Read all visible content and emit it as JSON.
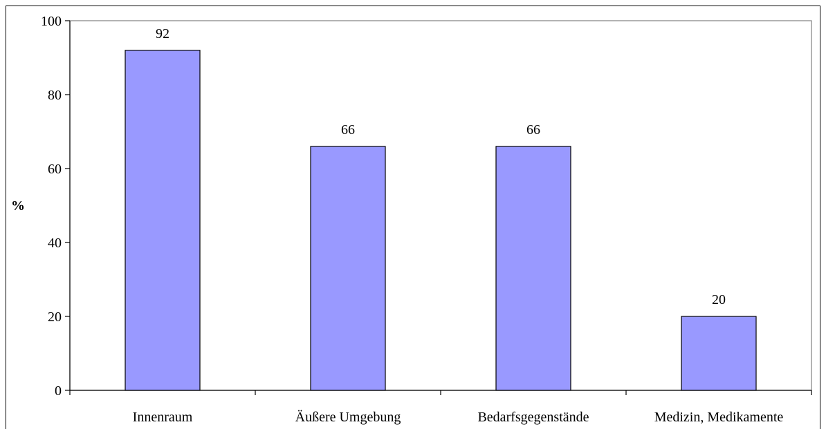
{
  "chart_data": {
    "type": "bar",
    "categories": [
      "Innenraum",
      "Äußere Umgebung",
      "Bedarfsgegenstände",
      "Medizin, Medikamente"
    ],
    "values": [
      92,
      66,
      66,
      20
    ],
    "data_labels": [
      "92",
      "66",
      "66",
      "20"
    ],
    "ylabel": "%",
    "xlabel": "",
    "title": "",
    "ylim": [
      0,
      100
    ],
    "yticks": [
      0,
      20,
      40,
      60,
      80,
      100
    ],
    "grid": false,
    "bar_color": "#9999ff",
    "plot_border_color": "#808080"
  }
}
